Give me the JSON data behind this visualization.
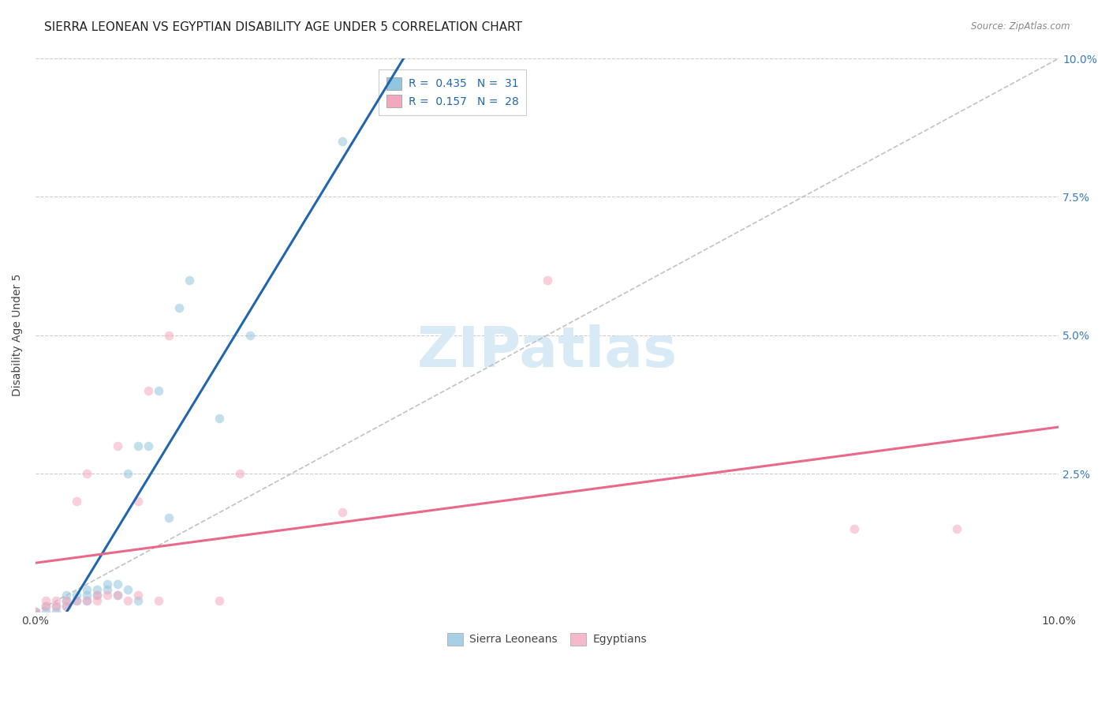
{
  "title": "SIERRA LEONEAN VS EGYPTIAN DISABILITY AGE UNDER 5 CORRELATION CHART",
  "source": "Source: ZipAtlas.com",
  "ylabel": "Disability Age Under 5",
  "xlim": [
    0.0,
    0.1
  ],
  "ylim": [
    0.0,
    0.1
  ],
  "xticks": [
    0.0,
    0.1
  ],
  "yticks": [
    0.0,
    0.025,
    0.05,
    0.075,
    0.1
  ],
  "xtick_labels": [
    "0.0%",
    "10.0%"
  ],
  "ytick_labels_left": [
    "",
    "",
    "",
    "",
    ""
  ],
  "ytick_labels_right": [
    "",
    "2.5%",
    "5.0%",
    "7.5%",
    "10.0%"
  ],
  "grid_yticks": [
    0.025,
    0.05,
    0.075,
    0.1
  ],
  "blue_color": "#92c5de",
  "pink_color": "#f4a8be",
  "blue_line_color": "#2166ac",
  "pink_line_color": "#e8698a",
  "diagonal_color": "#bbbbbb",
  "legend_R_blue": "0.435",
  "legend_N_blue": "31",
  "legend_R_pink": "0.157",
  "legend_N_pink": "28",
  "legend_label_blue": "Sierra Leoneans",
  "legend_label_pink": "Egyptians",
  "blue_x": [
    0.0,
    0.001,
    0.001,
    0.002,
    0.002,
    0.003,
    0.003,
    0.003,
    0.004,
    0.004,
    0.005,
    0.005,
    0.005,
    0.006,
    0.006,
    0.007,
    0.007,
    0.008,
    0.008,
    0.009,
    0.009,
    0.01,
    0.01,
    0.011,
    0.012,
    0.013,
    0.014,
    0.015,
    0.018,
    0.021,
    0.03
  ],
  "blue_y": [
    0.0,
    0.0,
    0.001,
    0.0,
    0.001,
    0.001,
    0.002,
    0.003,
    0.002,
    0.003,
    0.002,
    0.003,
    0.004,
    0.003,
    0.004,
    0.004,
    0.005,
    0.003,
    0.005,
    0.004,
    0.025,
    0.002,
    0.03,
    0.03,
    0.04,
    0.017,
    0.055,
    0.06,
    0.035,
    0.05,
    0.085
  ],
  "pink_x": [
    0.0,
    0.001,
    0.001,
    0.002,
    0.002,
    0.003,
    0.003,
    0.004,
    0.004,
    0.005,
    0.005,
    0.006,
    0.006,
    0.007,
    0.008,
    0.008,
    0.009,
    0.01,
    0.01,
    0.011,
    0.012,
    0.013,
    0.018,
    0.02,
    0.03,
    0.05,
    0.08,
    0.09
  ],
  "pink_y": [
    0.0,
    0.001,
    0.002,
    0.001,
    0.002,
    0.001,
    0.002,
    0.002,
    0.02,
    0.002,
    0.025,
    0.002,
    0.003,
    0.003,
    0.003,
    0.03,
    0.002,
    0.003,
    0.02,
    0.04,
    0.002,
    0.05,
    0.002,
    0.025,
    0.018,
    0.06,
    0.015,
    0.015
  ],
  "background_color": "#ffffff",
  "grid_color": "#cccccc",
  "marker_size": 70,
  "marker_alpha": 0.55,
  "title_fontsize": 11,
  "axis_label_fontsize": 10,
  "tick_fontsize": 10,
  "legend_fontsize": 10,
  "watermark_text": "ZIPatlas",
  "watermark_color": "#d8eaf6",
  "watermark_fontsize": 52
}
